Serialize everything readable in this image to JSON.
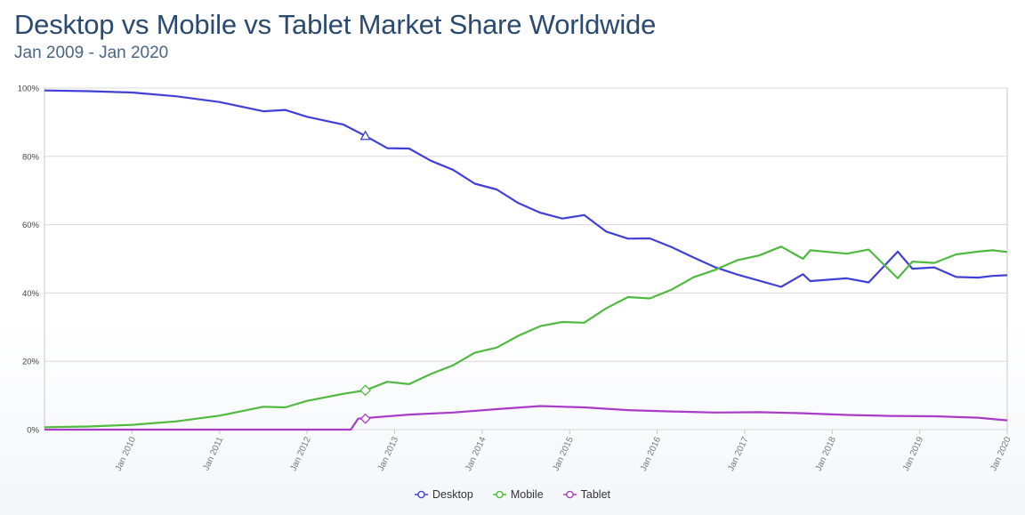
{
  "title": "Desktop vs Mobile vs Tablet Market Share Worldwide",
  "subtitle": "Jan 2009 - Jan 2020",
  "colors": {
    "desktop": "#4040d8",
    "mobile": "#4fba3f",
    "tablet": "#a93bc9",
    "grid": "#d8d8d8"
  },
  "chart_data": {
    "type": "line",
    "title": "Desktop vs Mobile vs Tablet Market Share Worldwide",
    "subtitle": "Jan 2009 - Jan 2020",
    "x_range": [
      "2009-01",
      "2020-01"
    ],
    "ylim": [
      0,
      100
    ],
    "yticks": [
      "0%",
      "20%",
      "40%",
      "60%",
      "80%",
      "100%"
    ],
    "xticks": [
      "Jan 2010",
      "Jan 2011",
      "Jan 2012",
      "Jan 2013",
      "Jan 2014",
      "Jan 2015",
      "Jan 2016",
      "Jan 2017",
      "Jan 2018",
      "Jan 2019",
      "Jan 2020"
    ],
    "legend_position": "bottom",
    "grid": true,
    "series": [
      {
        "name": "Desktop",
        "points": [
          [
            "2009-01",
            99.3
          ],
          [
            "2009-07",
            99.1
          ],
          [
            "2010-01",
            98.7
          ],
          [
            "2010-07",
            97.6
          ],
          [
            "2011-01",
            95.9
          ],
          [
            "2011-07",
            93.2
          ],
          [
            "2011-10",
            93.6
          ],
          [
            "2012-01",
            91.6
          ],
          [
            "2012-06",
            89.3
          ],
          [
            "2012-09",
            86.0
          ],
          [
            "2012-12",
            82.4
          ],
          [
            "2013-03",
            82.3
          ],
          [
            "2013-06",
            78.7
          ],
          [
            "2013-09",
            76.1
          ],
          [
            "2013-12",
            72.0
          ],
          [
            "2014-03",
            70.3
          ],
          [
            "2014-06",
            66.3
          ],
          [
            "2014-09",
            63.5
          ],
          [
            "2014-12",
            61.8
          ],
          [
            "2015-03",
            62.8
          ],
          [
            "2015-06",
            58.0
          ],
          [
            "2015-09",
            55.9
          ],
          [
            "2015-12",
            56.0
          ],
          [
            "2016-03",
            53.4
          ],
          [
            "2016-06",
            50.4
          ],
          [
            "2016-09",
            47.5
          ],
          [
            "2016-12",
            45.4
          ],
          [
            "2017-03",
            43.6
          ],
          [
            "2017-06",
            41.8
          ],
          [
            "2017-09",
            45.5
          ],
          [
            "2017-10",
            43.5
          ],
          [
            "2018-03",
            44.3
          ],
          [
            "2018-06",
            43.1
          ],
          [
            "2018-10",
            52.1
          ],
          [
            "2018-12",
            47.1
          ],
          [
            "2019-03",
            47.5
          ],
          [
            "2019-06",
            44.7
          ],
          [
            "2019-09",
            44.5
          ],
          [
            "2019-11",
            45.0
          ],
          [
            "2020-01",
            45.2
          ]
        ]
      },
      {
        "name": "Mobile",
        "points": [
          [
            "2009-01",
            0.7
          ],
          [
            "2009-07",
            0.9
          ],
          [
            "2010-01",
            1.4
          ],
          [
            "2010-07",
            2.4
          ],
          [
            "2011-01",
            4.1
          ],
          [
            "2011-07",
            6.7
          ],
          [
            "2011-10",
            6.5
          ],
          [
            "2012-01",
            8.4
          ],
          [
            "2012-06",
            10.5
          ],
          [
            "2012-09",
            11.5
          ],
          [
            "2012-12",
            14.0
          ],
          [
            "2013-03",
            13.3
          ],
          [
            "2013-06",
            16.3
          ],
          [
            "2013-09",
            18.8
          ],
          [
            "2013-12",
            22.5
          ],
          [
            "2014-03",
            24.0
          ],
          [
            "2014-06",
            27.5
          ],
          [
            "2014-09",
            30.3
          ],
          [
            "2014-12",
            31.5
          ],
          [
            "2015-03",
            31.3
          ],
          [
            "2015-06",
            35.5
          ],
          [
            "2015-09",
            38.8
          ],
          [
            "2015-12",
            38.4
          ],
          [
            "2016-03",
            41.0
          ],
          [
            "2016-06",
            44.6
          ],
          [
            "2016-09",
            46.8
          ],
          [
            "2016-12",
            49.6
          ],
          [
            "2017-03",
            51.0
          ],
          [
            "2017-06",
            53.6
          ],
          [
            "2017-09",
            50.0
          ],
          [
            "2017-10",
            52.5
          ],
          [
            "2018-03",
            51.5
          ],
          [
            "2018-06",
            52.7
          ],
          [
            "2018-10",
            44.3
          ],
          [
            "2018-12",
            49.2
          ],
          [
            "2019-03",
            48.8
          ],
          [
            "2019-06",
            51.3
          ],
          [
            "2019-09",
            52.1
          ],
          [
            "2019-11",
            52.5
          ],
          [
            "2020-01",
            52.0
          ]
        ]
      },
      {
        "name": "Tablet",
        "points": [
          [
            "2009-01",
            0.0
          ],
          [
            "2012-07",
            0.0
          ],
          [
            "2012-08",
            3.2
          ],
          [
            "2013-03",
            4.4
          ],
          [
            "2013-09",
            5.0
          ],
          [
            "2014-03",
            6.0
          ],
          [
            "2014-09",
            6.9
          ],
          [
            "2015-03",
            6.5
          ],
          [
            "2015-09",
            5.7
          ],
          [
            "2016-03",
            5.3
          ],
          [
            "2016-09",
            5.0
          ],
          [
            "2017-03",
            5.1
          ],
          [
            "2017-09",
            4.8
          ],
          [
            "2018-03",
            4.3
          ],
          [
            "2018-09",
            4.0
          ],
          [
            "2019-03",
            3.9
          ],
          [
            "2019-09",
            3.5
          ],
          [
            "2020-01",
            2.7
          ]
        ]
      }
    ]
  }
}
